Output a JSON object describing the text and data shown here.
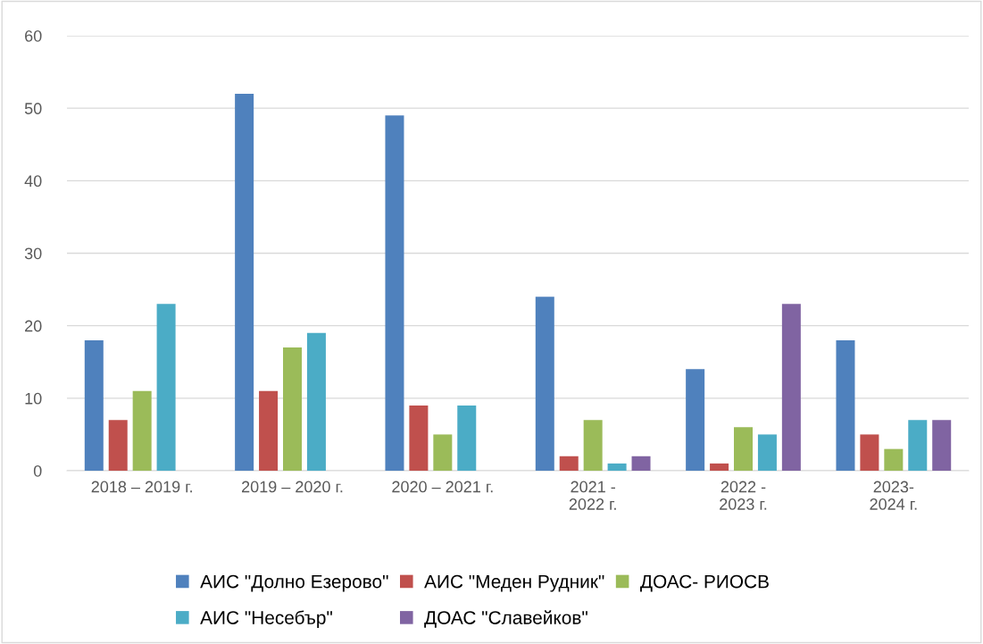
{
  "chart_data": {
    "type": "bar",
    "categories": [
      "2018 – 2019 г.",
      "2019 – 2020 г.",
      "2020 – 2021 г.",
      "2021 -\n2022 г.",
      "2022 -\n2023 г.",
      "2023-\n2024 г."
    ],
    "series": [
      {
        "name": "АИС \"Долно Езерово\"",
        "color": "#4f81bd",
        "values": [
          18,
          52,
          49,
          24,
          14,
          18
        ]
      },
      {
        "name": "АИС \"Меден Рудник\"",
        "color": "#c0504d",
        "values": [
          7,
          11,
          9,
          2,
          1,
          5
        ]
      },
      {
        "name": "ДОАС- РИОСВ",
        "color": "#9bbb59",
        "values": [
          11,
          17,
          5,
          7,
          6,
          3
        ]
      },
      {
        "name": "АИС \"Несебър\"",
        "color": "#4bacc6",
        "values": [
          23,
          19,
          9,
          1,
          5,
          7
        ]
      },
      {
        "name": "ДОАС \"Славейков\"",
        "color": "#8064a2",
        "values": [
          null,
          null,
          null,
          2,
          23,
          7
        ]
      }
    ],
    "ylim": [
      0,
      60
    ],
    "yticks": [
      0,
      10,
      20,
      30,
      40,
      50,
      60
    ],
    "grid": "y",
    "legend": "bottom"
  }
}
